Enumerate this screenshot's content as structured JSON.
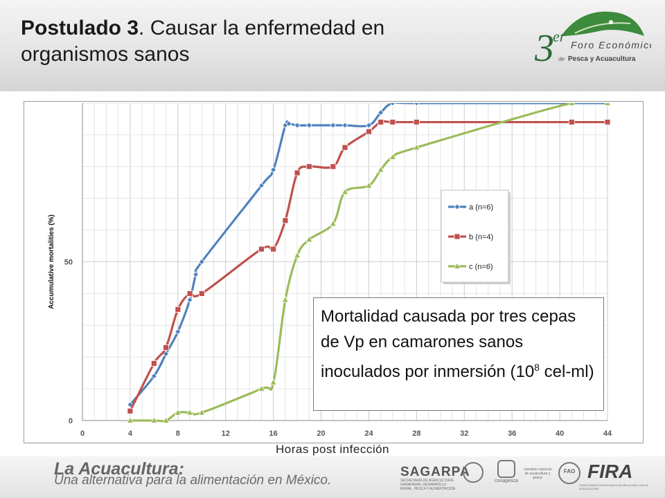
{
  "slide": {
    "title_bold": "Postulado 3",
    "title_rest": ". Causar la enfermedad en organismos sanos",
    "logo": {
      "numeral": "3",
      "superscript": "er",
      "line1": "Foro Económico",
      "line2_prefix": "de",
      "line2": "Pesca y Acuacultura"
    },
    "caption_main": "Mortalidad causada por tres cepas de Vp en camarones sanos inoculados por inmersión (10",
    "caption_sup": "8",
    "caption_end": " cel-ml)",
    "xcaption": "Horas post infección",
    "footer": {
      "brand": "La Acuacultura:",
      "tagline": "Una alternativa para la alimentación en México.",
      "sagarpa": "SAGARPA",
      "sagarpa_sub": "SECRETARÍA DE AGRICULTURA, GANADERÍA, DESARROLLO RURAL, PESCA Y ALIMENTACIÓN",
      "conapesca": "conapesca",
      "conapesca_sub": "comisión nacional de acuacultura y pesca",
      "fao": "FAO",
      "fira": "FIRA",
      "fira_sub": "FIDEICOMISOS INSTITUIDOS EN RELACIÓN CON LA AGRICULTURA"
    }
  },
  "chart_data": {
    "type": "line",
    "ylabel": "Accumulative mortalities (%)",
    "xlim": [
      0,
      44
    ],
    "ylim": [
      0,
      100
    ],
    "xticks": [
      0,
      4,
      8,
      12,
      16,
      20,
      24,
      28,
      32,
      36,
      40,
      44
    ],
    "yticks": [
      0,
      50
    ],
    "grid": true,
    "legend_position": "right",
    "series": [
      {
        "name": "a (n=6)",
        "color": "#4f81bd",
        "marker": "diamond",
        "x": [
          4,
          6,
          7,
          8,
          9,
          9.5,
          10,
          15,
          16,
          17,
          17.3,
          18,
          19,
          21,
          22,
          24,
          25,
          26,
          28,
          41,
          44
        ],
        "y": [
          5,
          14,
          21,
          28,
          38,
          46,
          50,
          74,
          79,
          93,
          93.5,
          93,
          93,
          93,
          93,
          93,
          97,
          100,
          100,
          100,
          100
        ]
      },
      {
        "name": "b (n=4)",
        "color": "#c0504d",
        "marker": "square",
        "x": [
          4,
          6,
          7,
          8,
          9,
          10,
          15,
          16,
          17,
          18,
          19,
          21,
          22,
          24,
          25,
          26,
          28,
          41,
          44
        ],
        "y": [
          3,
          18,
          23,
          35,
          40,
          40,
          54,
          54,
          63,
          78,
          80,
          80,
          86,
          91,
          94,
          94,
          94,
          94,
          94
        ]
      },
      {
        "name": "c (n=6)",
        "color": "#9bbb59",
        "marker": "triangle",
        "x": [
          4,
          6,
          7,
          8,
          9,
          10,
          15,
          16,
          17,
          18,
          19,
          21,
          22,
          24,
          25,
          26,
          28,
          41,
          44
        ],
        "y": [
          0,
          0,
          0,
          2.5,
          2.5,
          2.5,
          10,
          12,
          38,
          52,
          57,
          62,
          72,
          74,
          79,
          83,
          86,
          100,
          100
        ]
      }
    ]
  }
}
